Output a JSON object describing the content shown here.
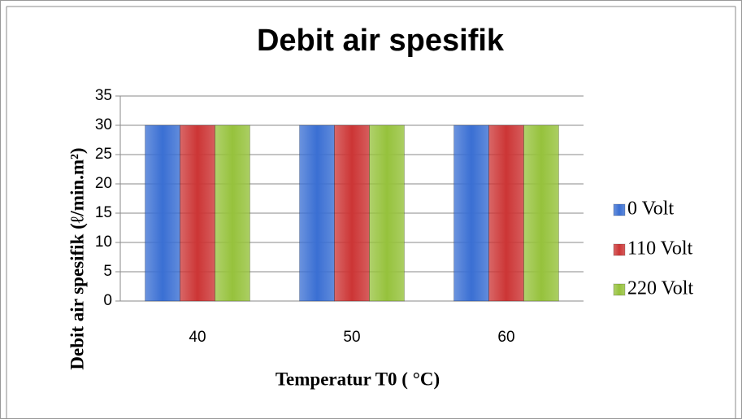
{
  "chart_data": {
    "type": "bar",
    "title": "Debit air spesifik",
    "x_label": "Temperatur T0 ( °C)",
    "y_label": "Debit air spesifik (ℓ/min.m²)",
    "categories": [
      "40",
      "50",
      "60"
    ],
    "series": [
      {
        "name": "0 Volt",
        "color": "#3a6fd3",
        "values": [
          30,
          30,
          30
        ]
      },
      {
        "name": "110 Volt",
        "color": "#cc3535",
        "values": [
          30,
          30,
          30
        ]
      },
      {
        "name": "220 Volt",
        "color": "#96c23c",
        "values": [
          30,
          30,
          30
        ]
      }
    ],
    "ylim": [
      0,
      35
    ],
    "yticks": [
      0,
      5,
      10,
      15,
      20,
      25,
      30,
      35
    ],
    "grid": true,
    "legend": "right"
  }
}
